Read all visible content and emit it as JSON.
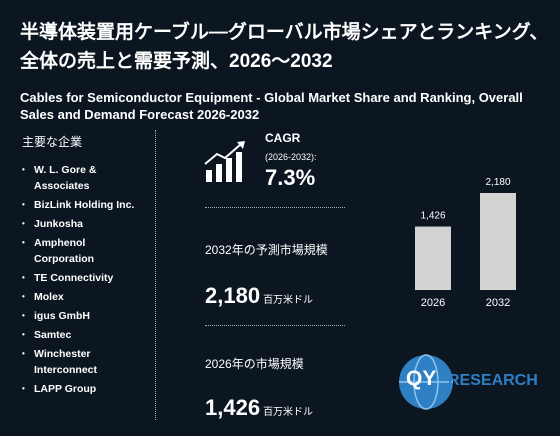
{
  "header": {
    "title": "半導体装置用ケーブル―グローバル市場シェアとランキング、全体の売上と需要予測、2026～2032",
    "subtitle": "Cables for Semiconductor Equipment - Global Market Share and Ranking, Overall Sales and Demand Forecast 2026-2032"
  },
  "companies": {
    "heading": "主要な企業",
    "items": [
      "W. L. Gore & Associates",
      "BizLink Holding Inc.",
      "Junkosha",
      "Amphenol Corporation",
      "TE Connectivity",
      "Molex",
      "igus GmbH",
      "Samtec",
      "Winchester Interconnect",
      "LAPP Group"
    ]
  },
  "cagr": {
    "label": "CAGR",
    "period": "(2026-2032):",
    "value": "7.3%"
  },
  "forecast": {
    "label": "2032年の予測市場規模",
    "unit": "百万米ドル"
  },
  "current": {
    "label": "2026年の市場規模",
    "unit": "百万米ドル"
  },
  "logo": {
    "mark": "QY",
    "text": "RESEARCH"
  },
  "chart_data": {
    "type": "bar",
    "categories": [
      "2026",
      "2032"
    ],
    "values": [
      1426,
      2180
    ],
    "value_labels": [
      "1,426",
      "2,180"
    ],
    "color": "#d3d3d3",
    "ylim": [
      0,
      2180
    ]
  }
}
